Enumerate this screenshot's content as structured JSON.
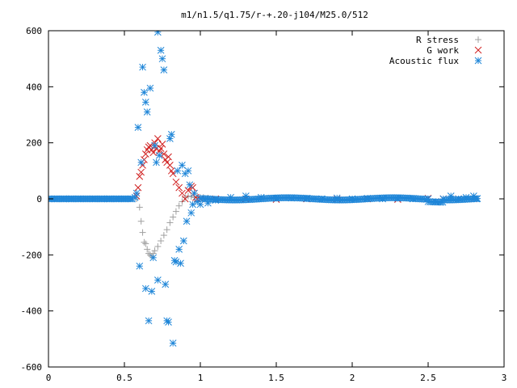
{
  "chart_data": {
    "type": "scatter",
    "title": "m1/n1.5/q1.75/r-+.20-j104/M25.0/512",
    "xlabel": "",
    "ylabel": "",
    "xlim": [
      0,
      3
    ],
    "ylim": [
      -600,
      600
    ],
    "x_ticks": [
      "0",
      "0.5",
      "1",
      "1.5",
      "2",
      "2.5",
      "3"
    ],
    "y_ticks": [
      "-600",
      "-400",
      "-200",
      "0",
      "200",
      "400",
      "600"
    ],
    "grid": false,
    "legend_position": "top-right",
    "series": [
      {
        "name": "R stress",
        "marker": "plus",
        "color": "#a0a0a0",
        "points": [
          [
            0.58,
            0
          ],
          [
            0.6,
            -30
          ],
          [
            0.61,
            -80
          ],
          [
            0.62,
            -120
          ],
          [
            0.63,
            -155
          ],
          [
            0.64,
            -160
          ],
          [
            0.65,
            -180
          ],
          [
            0.66,
            -195
          ],
          [
            0.67,
            -200
          ],
          [
            0.68,
            -205
          ],
          [
            0.69,
            -195
          ],
          [
            0.7,
            -185
          ],
          [
            0.72,
            -170
          ],
          [
            0.74,
            -150
          ],
          [
            0.76,
            -130
          ],
          [
            0.78,
            -110
          ],
          [
            0.8,
            -85
          ],
          [
            0.82,
            -65
          ],
          [
            0.84,
            -45
          ],
          [
            0.86,
            -25
          ],
          [
            0.88,
            -10
          ],
          [
            0.9,
            5
          ],
          [
            0.92,
            10
          ],
          [
            0.94,
            8
          ],
          [
            0.96,
            5
          ],
          [
            0.98,
            8
          ],
          [
            1.0,
            5
          ],
          [
            1.02,
            5
          ],
          [
            1.05,
            3
          ]
        ]
      },
      {
        "name": "G work",
        "marker": "cross",
        "color": "#d02020",
        "points": [
          [
            0.58,
            10
          ],
          [
            0.59,
            40
          ],
          [
            0.6,
            80
          ],
          [
            0.61,
            95
          ],
          [
            0.62,
            120
          ],
          [
            0.63,
            140
          ],
          [
            0.64,
            160
          ],
          [
            0.65,
            175
          ],
          [
            0.66,
            185
          ],
          [
            0.67,
            190
          ],
          [
            0.68,
            175
          ],
          [
            0.69,
            165
          ],
          [
            0.7,
            200
          ],
          [
            0.71,
            180
          ],
          [
            0.72,
            215
          ],
          [
            0.73,
            170
          ],
          [
            0.74,
            180
          ],
          [
            0.75,
            195
          ],
          [
            0.76,
            160
          ],
          [
            0.77,
            140
          ],
          [
            0.78,
            130
          ],
          [
            0.79,
            150
          ],
          [
            0.8,
            120
          ],
          [
            0.81,
            100
          ],
          [
            0.82,
            90
          ],
          [
            0.84,
            60
          ],
          [
            0.86,
            40
          ],
          [
            0.88,
            20
          ],
          [
            0.9,
            0
          ],
          [
            0.92,
            30
          ],
          [
            0.94,
            45
          ],
          [
            0.95,
            40
          ],
          [
            0.96,
            20
          ],
          [
            0.97,
            5
          ],
          [
            0.98,
            0
          ],
          [
            1.0,
            0
          ],
          [
            1.1,
            0
          ],
          [
            1.3,
            0
          ],
          [
            1.5,
            -2
          ],
          [
            1.7,
            0
          ],
          [
            1.9,
            -2
          ],
          [
            2.1,
            0
          ],
          [
            2.3,
            -2
          ],
          [
            2.5,
            2
          ],
          [
            2.55,
            -10
          ],
          [
            2.6,
            0
          ],
          [
            2.7,
            0
          ],
          [
            2.8,
            0
          ]
        ]
      },
      {
        "name": "Acoustic flux",
        "marker": "star",
        "color": "#1f86d8",
        "points": [
          [
            0.0,
            0
          ],
          [
            0.05,
            0
          ],
          [
            0.1,
            0
          ],
          [
            0.15,
            0
          ],
          [
            0.2,
            0
          ],
          [
            0.25,
            0
          ],
          [
            0.3,
            0
          ],
          [
            0.35,
            0
          ],
          [
            0.4,
            0
          ],
          [
            0.45,
            0
          ],
          [
            0.5,
            0
          ],
          [
            0.55,
            0
          ],
          [
            0.57,
            5
          ],
          [
            0.58,
            20
          ],
          [
            0.59,
            255
          ],
          [
            0.6,
            -240
          ],
          [
            0.61,
            130
          ],
          [
            0.62,
            470
          ],
          [
            0.63,
            380
          ],
          [
            0.64,
            345
          ],
          [
            0.65,
            310
          ],
          [
            0.64,
            -320
          ],
          [
            0.66,
            -435
          ],
          [
            0.67,
            395
          ],
          [
            0.68,
            -330
          ],
          [
            0.69,
            -210
          ],
          [
            0.7,
            190
          ],
          [
            0.71,
            130
          ],
          [
            0.72,
            -290
          ],
          [
            0.73,
            155
          ],
          [
            0.74,
            530
          ],
          [
            0.75,
            500
          ],
          [
            0.76,
            460
          ],
          [
            0.77,
            -305
          ],
          [
            0.78,
            -435
          ],
          [
            0.79,
            -440
          ],
          [
            0.8,
            215
          ],
          [
            0.81,
            230
          ],
          [
            0.82,
            -515
          ],
          [
            0.83,
            -220
          ],
          [
            0.84,
            -225
          ],
          [
            0.85,
            100
          ],
          [
            0.86,
            -180
          ],
          [
            0.87,
            -230
          ],
          [
            0.88,
            120
          ],
          [
            0.89,
            -150
          ],
          [
            0.9,
            90
          ],
          [
            0.91,
            -80
          ],
          [
            0.92,
            100
          ],
          [
            0.93,
            50
          ],
          [
            0.94,
            -50
          ],
          [
            0.95,
            -20
          ],
          [
            0.96,
            20
          ],
          [
            0.98,
            -10
          ],
          [
            1.0,
            -20
          ],
          [
            1.05,
            -15
          ],
          [
            1.1,
            -5
          ],
          [
            1.2,
            5
          ],
          [
            1.3,
            10
          ],
          [
            1.4,
            5
          ],
          [
            1.5,
            2
          ],
          [
            1.6,
            3
          ],
          [
            1.7,
            2
          ],
          [
            1.8,
            0
          ],
          [
            1.9,
            3
          ],
          [
            2.0,
            0
          ],
          [
            2.1,
            2
          ],
          [
            2.2,
            0
          ],
          [
            2.3,
            2
          ],
          [
            2.4,
            0
          ],
          [
            2.5,
            0
          ],
          [
            2.55,
            -10
          ],
          [
            2.6,
            0
          ],
          [
            2.65,
            10
          ],
          [
            2.7,
            0
          ],
          [
            2.75,
            5
          ],
          [
            2.8,
            10
          ],
          [
            2.82,
            0
          ],
          [
            0.72,
            595
          ]
        ]
      }
    ]
  }
}
